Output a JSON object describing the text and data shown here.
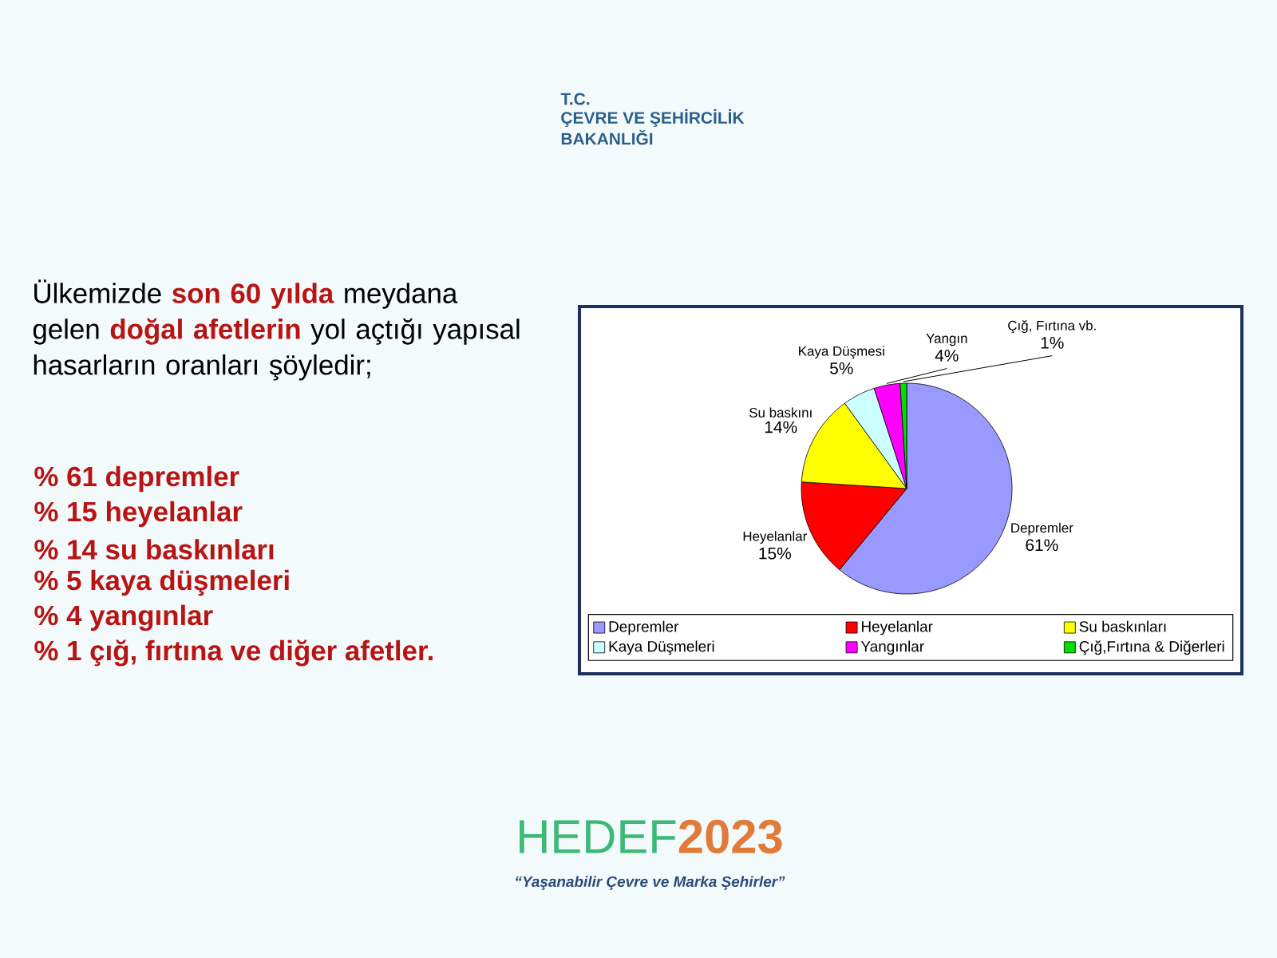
{
  "chart_data": {
    "type": "pie",
    "title": "Ülkemizde **son 60 yılda** meydana gelen **doğal afetlerin** yol açtığı yapısal hasarların oranları şöyledir;",
    "categories": [
      "Depremler",
      "Heyelanlar",
      "Su baskınları",
      "Kaya Düşmeleri",
      "Yangınlar",
      "Çığ,Fırtına & Diğerleri"
    ],
    "values": [
      61,
      15,
      14,
      5,
      4,
      1
    ],
    "colors": [
      "#9999ff",
      "#ff0000",
      "#ffff00",
      "#ccffff",
      "#ff00ff",
      "#00dd00"
    ],
    "value_labels": [
      "61%",
      "15%",
      "14%",
      "5%",
      "4%",
      "1%"
    ],
    "legend": "bottom",
    "annotations": [
      {
        "text": "Depremler",
        "x": "Depremler"
      },
      {
        "text": "Heyelanlar",
        "x": "Heyelanlar"
      },
      {
        "text": "Su baskını",
        "x": "Su baskınları"
      },
      {
        "text": "Kaya Düşmesi",
        "x": "Kaya Düşmeleri"
      },
      {
        "text": "Yangın",
        "x": "Yangınlar"
      },
      {
        "text": "Çığ, Fırtına vb.",
        "x": "Çığ,Fırtına & Diğerleri"
      },
      "% 61 depremler",
      "% 15 heyelanlar",
      "% 14 su baskınları",
      "% 5 kaya düşmeleri",
      "% 4 yangınlar",
      "% 1 çığ, fırtına ve diğer afetler.",
      "T.C.",
      "ÇEVRE VE ŞEHİRCİLİK",
      "BAKANLIĞI",
      "HEDEF**2023**",
      "“Yaşanabilir Çevre ve Marka Şehirler”"
    ]
  }
}
